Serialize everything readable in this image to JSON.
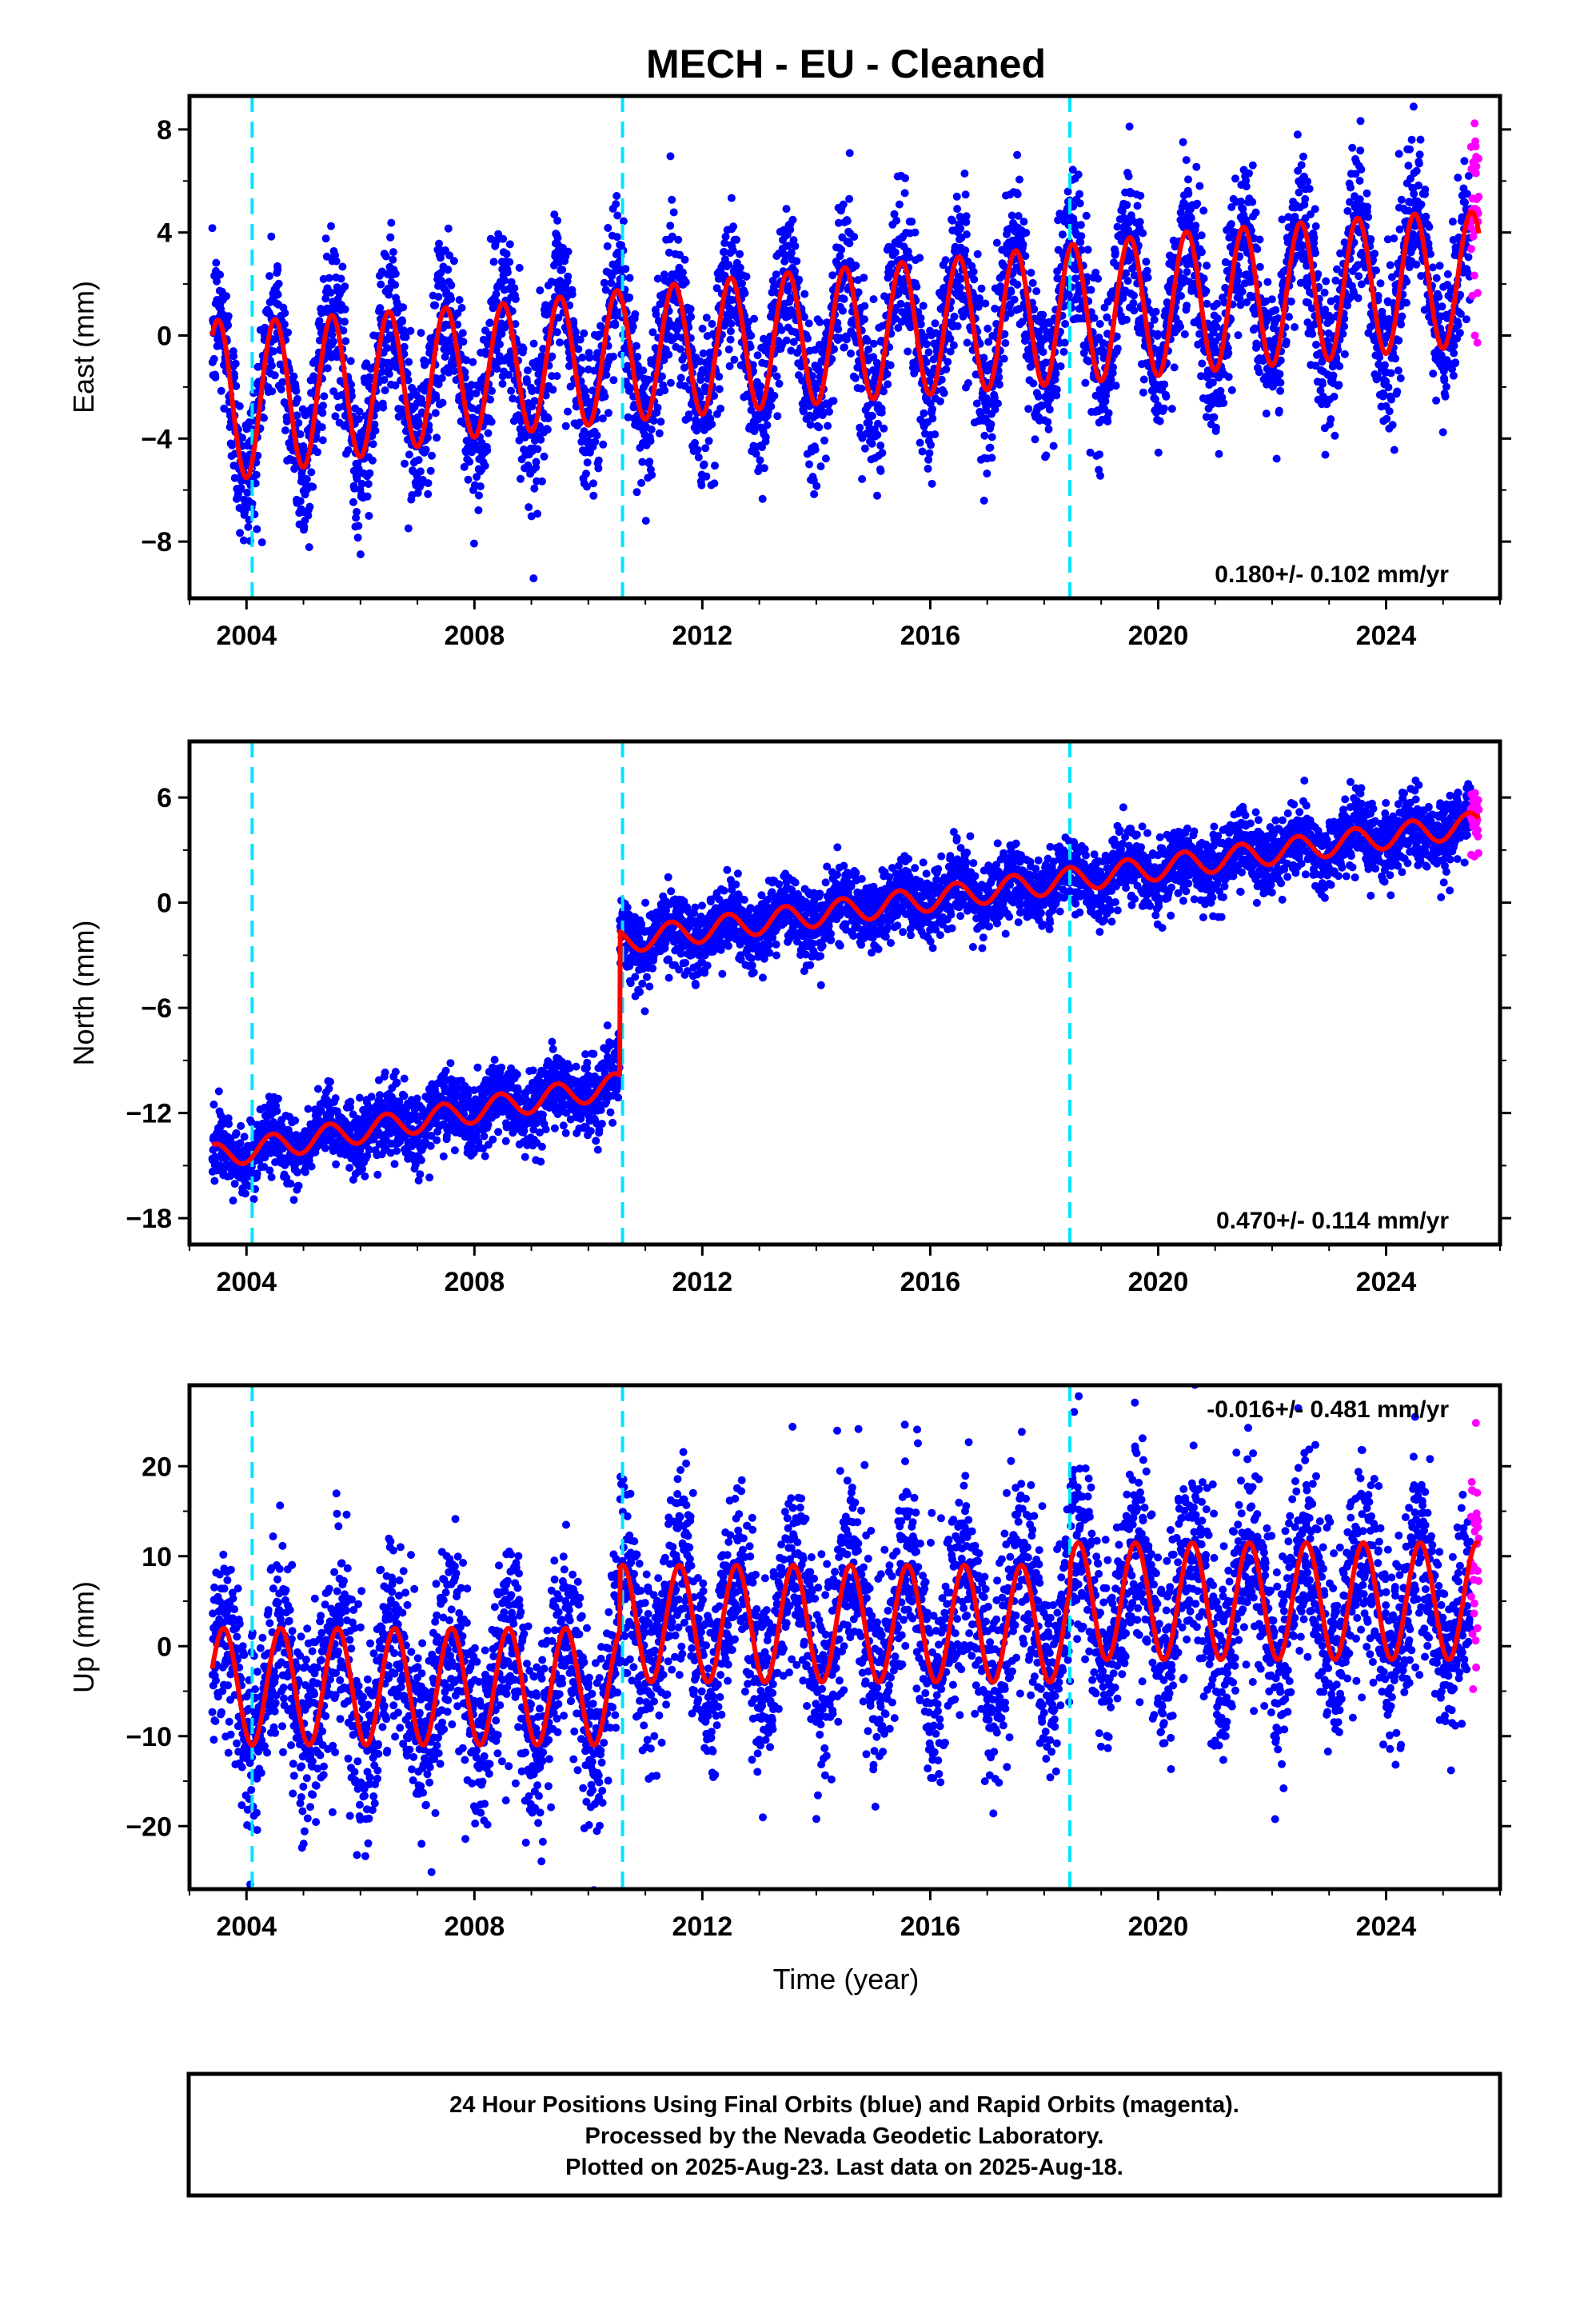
{
  "title": "MECH  - EU - Cleaned",
  "xlabel": "Time (year)",
  "footer": {
    "line1": "24 Hour Positions Using Final Orbits (blue) and Rapid Orbits (magenta).",
    "line2": "Processed by the Nevada Geodetic Laboratory.",
    "line3": "Plotted on 2025-Aug-23. Last data on 2025-Aug-18."
  },
  "colors": {
    "final_orbits": "#0000ff",
    "rapid_orbits": "#ff00ff",
    "model": "#ff0000",
    "equipment_change": "#00e5ff"
  },
  "chart_data": [
    {
      "type": "scatter",
      "title": "MECH  - EU - Cleaned",
      "ylabel": "East (mm)",
      "xlabel": "",
      "xlim": [
        2003.0,
        2026.0
      ],
      "ylim": [
        -10.2,
        9.3
      ],
      "x_ticks": [
        2004,
        2008,
        2012,
        2016,
        2020,
        2024
      ],
      "y_ticks": [
        8,
        4,
        0,
        -4,
        -8
      ],
      "y_tick_labels": [
        "8",
        "4",
        "0",
        "−4",
        "−8"
      ],
      "rate_text": "0.180+/- 0.102 mm/yr",
      "rate_position": "bottom-right",
      "equipment_changes": [
        2004.1,
        2010.6,
        2018.45
      ],
      "data_start": 2003.4,
      "data_end": 2025.63,
      "rapid_start": 2025.48,
      "model": {
        "offset_mm": -2.0,
        "rate_mm_per_yr": 0.18,
        "annual_amplitude_mm": [
          2.6,
          3.2
        ],
        "annual_phase_year": 0.25,
        "steps": [],
        "peak_points": [
          [
            2004.3,
            0.6
          ],
          [
            2008.3,
            1.2
          ],
          [
            2012.3,
            2.2
          ],
          [
            2016.3,
            3.0
          ],
          [
            2020.3,
            4.0
          ],
          [
            2024.3,
            4.7
          ],
          [
            2025.5,
            4.8
          ]
        ],
        "trough_points": [
          [
            2003.8,
            -5.6
          ],
          [
            2007.8,
            -4.0
          ],
          [
            2010.8,
            -3.3
          ],
          [
            2014.8,
            -2.5
          ],
          [
            2018.8,
            -1.8
          ],
          [
            2022.8,
            -1.0
          ],
          [
            2024.8,
            -0.5
          ]
        ]
      },
      "scatter_sigma_mm": 1.5
    },
    {
      "type": "scatter",
      "title": "",
      "ylabel": "North (mm)",
      "xlabel": "",
      "xlim": [
        2003.0,
        2026.0
      ],
      "ylim": [
        -19.5,
        9.2
      ],
      "x_ticks": [
        2004,
        2008,
        2012,
        2016,
        2020,
        2024
      ],
      "y_ticks": [
        6,
        0,
        -6,
        -12,
        -18
      ],
      "y_tick_labels": [
        "6",
        "0",
        "−6",
        "−12",
        "−18"
      ],
      "rate_text": "0.470+/- 0.114 mm/yr",
      "rate_position": "bottom-right",
      "equipment_changes": [
        2004.1,
        2010.6,
        2018.45
      ],
      "data_start": 2003.4,
      "data_end": 2025.63,
      "rapid_start": 2025.48,
      "model": {
        "segments": [
          {
            "x": [
              2003.4,
              2010.55
            ],
            "y": [
              -14.5,
              -10.4
            ]
          },
          {
            "x": [
              2010.55,
              2025.63
            ],
            "y": [
              -2.2,
              4.5
            ]
          }
        ],
        "step_year": 2010.55,
        "step_mm": 8.0,
        "annual_amplitude_mm": 0.7,
        "annual_phase_year": 0.2
      },
      "scatter_sigma_mm": 1.0
    },
    {
      "type": "scatter",
      "title": "",
      "ylabel": "Up (mm)",
      "xlabel": "Time (year)",
      "xlim": [
        2003.0,
        2026.0
      ],
      "ylim": [
        -27,
        29
      ],
      "x_ticks": [
        2004,
        2008,
        2012,
        2016,
        2020,
        2024
      ],
      "y_ticks": [
        20,
        10,
        0,
        -10,
        -20
      ],
      "y_tick_labels": [
        "20",
        "10",
        "0",
        "−10",
        "−20"
      ],
      "rate_text": "-0.016+/- 0.481 mm/yr",
      "rate_position": "top-right",
      "equipment_changes": [
        2004.1,
        2010.6,
        2018.45
      ],
      "data_start": 2003.4,
      "data_end": 2025.63,
      "rapid_start": 2025.48,
      "model": {
        "segments": [
          {
            "x": [
              2003.4,
              2010.55
            ],
            "center_mm": -4.5,
            "amplitude_mm": 6.5
          },
          {
            "x": [
              2010.55,
              2018.45
            ],
            "center_mm": 2.5,
            "amplitude_mm": 6.5
          },
          {
            "x": [
              2018.45,
              2025.63
            ],
            "center_mm": 5.0,
            "amplitude_mm": 6.5
          }
        ],
        "annual_phase_year": 0.35
      },
      "scatter_sigma_mm": 5.5
    }
  ]
}
